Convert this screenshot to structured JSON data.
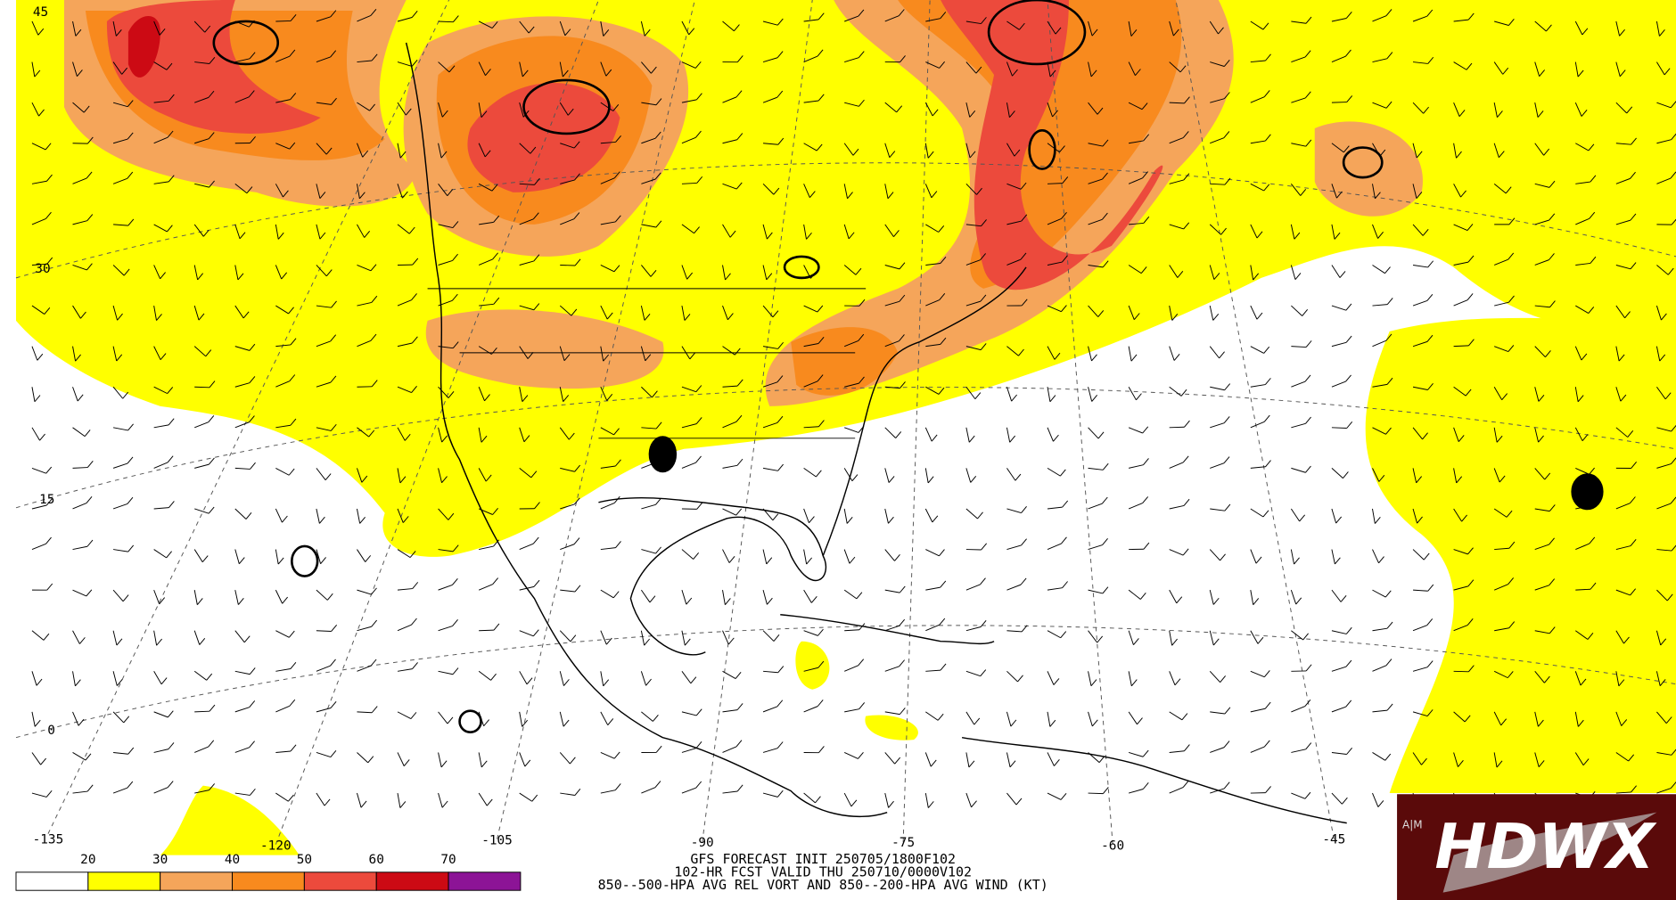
{
  "map": {
    "lat_labels": [
      "45",
      "30",
      "15",
      "0"
    ],
    "lon_labels": [
      "-135",
      "-120",
      "-105",
      "-90",
      "-75",
      "-60",
      "-45"
    ],
    "legend": {
      "ticks": [
        20,
        30,
        40,
        50,
        60,
        70
      ],
      "colors": [
        "#ffffff",
        "#ffff00",
        "#f5a55a",
        "#f88a1e",
        "#ec4a3c",
        "#cc0a14",
        "#8c1496"
      ]
    },
    "caption": [
      "GFS FORECAST INIT 250705/1800F102",
      "102-HR FCST VALID THU 250710/0000V102",
      "850--500-HPA AVG REL VORT AND 850--200-HPA AVG WIND (KT)"
    ],
    "logo": "HDWX"
  }
}
